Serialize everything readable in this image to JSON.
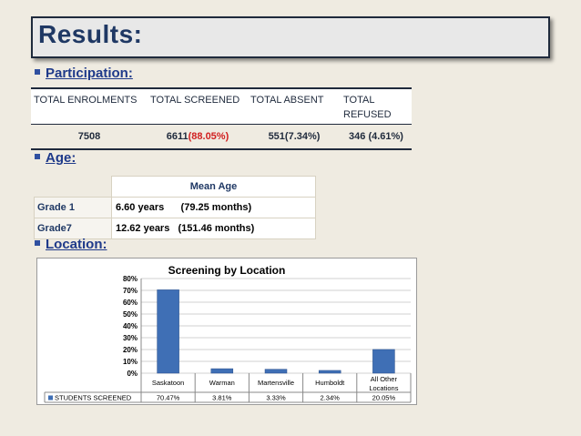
{
  "title": "Results:",
  "participation": {
    "heading": "Participation:",
    "headers": [
      "TOTAL ENROLMENTS",
      "TOTAL SCREENED",
      "TOTAL ABSENT",
      "TOTAL REFUSED"
    ],
    "enrolments": "7508",
    "screened": "6611",
    "screened_pct": "(88.05%)",
    "absent": "551(7.34%)",
    "refused": "346 (4.61%)",
    "highlight_color": "#d12020"
  },
  "age": {
    "heading": "Age:",
    "col_header": "Mean Age",
    "rows": [
      {
        "grade": "Grade 1",
        "value": "6.60 years      (79.25 months)"
      },
      {
        "grade": "Grade7",
        "value": "12.62 years   (151.46 months)"
      }
    ]
  },
  "location": {
    "heading": "Location:"
  },
  "chart_data": {
    "type": "bar",
    "title": "Screening by Location",
    "categories": [
      "Saskatoon",
      "Warman",
      "Martensville",
      "Humboldt",
      "All Other Locations"
    ],
    "series": [
      {
        "name": "STUDENTS SCREENED",
        "values": [
          70.47,
          3.81,
          3.33,
          2.34,
          20.05
        ]
      }
    ],
    "value_labels": [
      "70.47%",
      "3.81%",
      "3.33%",
      "2.34%",
      "20.05%"
    ],
    "yticks": [
      "0%",
      "10%",
      "20%",
      "30%",
      "40%",
      "50%",
      "60%",
      "70%",
      "80%"
    ],
    "ylim": [
      0,
      80
    ],
    "legend": "STUDENTS SCREENED",
    "bar_color": "#3f6fb5",
    "grid": true
  }
}
